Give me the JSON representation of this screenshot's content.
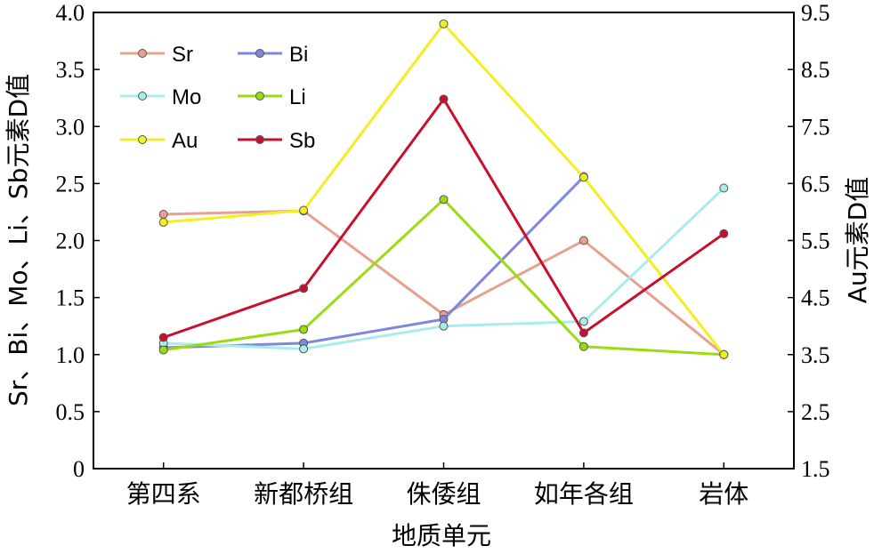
{
  "chart_data": {
    "type": "line",
    "categories": [
      "第四系",
      "新都桥组",
      "侏倭组",
      "如年各组",
      "岩体"
    ],
    "xlabel": "地质单元",
    "ylabel_left": "Sr、Bi、Mo、Li、Sb元素D值",
    "ylabel_right": "Au元素D值",
    "ylim_left": [
      0,
      4.0
    ],
    "yticks_left": [
      "0",
      "0.5",
      "1.0",
      "1.5",
      "2.0",
      "2.5",
      "3.0",
      "3.5",
      "4.0"
    ],
    "ylim_right": [
      1.5,
      9.5
    ],
    "yticks_right": [
      "1.5",
      "2.5",
      "3.5",
      "4.5",
      "5.5",
      "6.5",
      "7.5",
      "8.5",
      "9.5"
    ],
    "grid": false,
    "legend": "top-left",
    "series": [
      {
        "name": "Sr",
        "axis": "left",
        "color": "#e8a090",
        "values": [
          2.23,
          2.26,
          1.35,
          2.0,
          1.0
        ]
      },
      {
        "name": "Bi",
        "axis": "left",
        "color": "#7f87dc",
        "values": [
          1.06,
          1.1,
          1.31,
          2.56,
          null
        ]
      },
      {
        "name": "Mo",
        "axis": "left",
        "color": "#a8ecec",
        "values": [
          1.1,
          1.05,
          1.25,
          1.29,
          2.46
        ]
      },
      {
        "name": "Li",
        "axis": "left",
        "color": "#99dd11",
        "values": [
          1.04,
          1.22,
          2.36,
          1.07,
          1.0
        ]
      },
      {
        "name": "Au",
        "axis": "right",
        "color": "#f2ef20",
        "values": [
          5.82,
          6.03,
          9.3,
          6.61,
          3.5
        ]
      },
      {
        "name": "Sb",
        "axis": "left",
        "color": "#c8102e",
        "values": [
          1.15,
          1.58,
          3.24,
          1.19,
          2.06
        ]
      }
    ]
  }
}
